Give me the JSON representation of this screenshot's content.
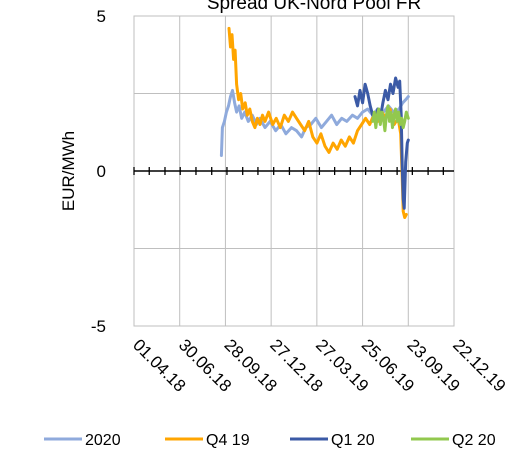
{
  "chart_data": {
    "type": "line",
    "title": "Spread UK-Nord Pool FR",
    "ylabel": "EUR/MWh",
    "xlabel": "",
    "ylim": [
      -5,
      5
    ],
    "y_ticks": [
      "5",
      "0",
      "-5"
    ],
    "x_tick_labels": [
      "01.04.18",
      "30.06.18",
      "28.09.18",
      "27.12.18",
      "27.03.19",
      "25.06.19",
      "23.09.19",
      "22.12.19"
    ],
    "xlim": [
      "2018-04-01",
      "2019-12-22"
    ],
    "grid": true,
    "legend_position": "bottom",
    "series": [
      {
        "name": "2020",
        "color": "#8FAADC",
        "points": [
          [
            "2018-09-20",
            0.5
          ],
          [
            "2018-09-22",
            1.4
          ],
          [
            "2018-09-26",
            1.6
          ],
          [
            "2018-09-30",
            1.9
          ],
          [
            "2018-10-04",
            2.1
          ],
          [
            "2018-10-08",
            2.4
          ],
          [
            "2018-10-12",
            2.6
          ],
          [
            "2018-10-16",
            2.2
          ],
          [
            "2018-10-20",
            1.9
          ],
          [
            "2018-10-25",
            2.1
          ],
          [
            "2018-10-30",
            1.7
          ],
          [
            "2018-11-05",
            1.9
          ],
          [
            "2018-11-12",
            1.6
          ],
          [
            "2018-11-20",
            1.8
          ],
          [
            "2018-11-28",
            1.5
          ],
          [
            "2018-12-05",
            1.7
          ],
          [
            "2018-12-15",
            1.4
          ],
          [
            "2018-12-25",
            1.6
          ],
          [
            "2019-01-05",
            1.3
          ],
          [
            "2019-01-15",
            1.5
          ],
          [
            "2019-01-25",
            1.2
          ],
          [
            "2019-02-05",
            1.4
          ],
          [
            "2019-02-15",
            1.3
          ],
          [
            "2019-02-25",
            1.1
          ],
          [
            "2019-03-05",
            1.4
          ],
          [
            "2019-03-15",
            1.5
          ],
          [
            "2019-03-25",
            1.7
          ],
          [
            "2019-04-05",
            1.4
          ],
          [
            "2019-04-15",
            1.6
          ],
          [
            "2019-04-25",
            1.8
          ],
          [
            "2019-05-05",
            1.5
          ],
          [
            "2019-05-15",
            1.7
          ],
          [
            "2019-05-25",
            1.6
          ],
          [
            "2019-06-05",
            1.8
          ],
          [
            "2019-06-15",
            1.7
          ],
          [
            "2019-06-25",
            1.9
          ],
          [
            "2019-07-05",
            2.0
          ],
          [
            "2019-07-15",
            1.8
          ],
          [
            "2019-07-25",
            2.0
          ],
          [
            "2019-08-05",
            1.9
          ],
          [
            "2019-08-15",
            2.1
          ],
          [
            "2019-08-25",
            1.9
          ],
          [
            "2019-09-05",
            2.0
          ],
          [
            "2019-09-12",
            2.2
          ],
          [
            "2019-09-18",
            2.3
          ],
          [
            "2019-09-23",
            2.4
          ]
        ]
      },
      {
        "name": "Q4 19",
        "color": "#FFA500",
        "points": [
          [
            "2018-10-05",
            4.6
          ],
          [
            "2018-10-08",
            4.0
          ],
          [
            "2018-10-11",
            4.4
          ],
          [
            "2018-10-14",
            3.6
          ],
          [
            "2018-10-17",
            3.9
          ],
          [
            "2018-10-20",
            2.8
          ],
          [
            "2018-10-24",
            2.3
          ],
          [
            "2018-10-28",
            2.5
          ],
          [
            "2018-11-01",
            2.0
          ],
          [
            "2018-11-06",
            2.2
          ],
          [
            "2018-11-10",
            1.8
          ],
          [
            "2018-11-15",
            2.0
          ],
          [
            "2018-11-20",
            1.6
          ],
          [
            "2018-11-25",
            1.4
          ],
          [
            "2018-11-30",
            1.7
          ],
          [
            "2018-12-05",
            1.5
          ],
          [
            "2018-12-10",
            1.8
          ],
          [
            "2018-12-15",
            1.6
          ],
          [
            "2018-12-22",
            1.9
          ],
          [
            "2018-12-30",
            1.5
          ],
          [
            "2019-01-06",
            1.7
          ],
          [
            "2019-01-14",
            1.4
          ],
          [
            "2019-01-22",
            1.8
          ],
          [
            "2019-01-30",
            1.6
          ],
          [
            "2019-02-07",
            1.9
          ],
          [
            "2019-02-15",
            1.7
          ],
          [
            "2019-02-23",
            1.5
          ],
          [
            "2019-03-03",
            1.3
          ],
          [
            "2019-03-11",
            1.6
          ],
          [
            "2019-03-19",
            1.1
          ],
          [
            "2019-03-27",
            0.9
          ],
          [
            "2019-04-04",
            1.2
          ],
          [
            "2019-04-12",
            0.8
          ],
          [
            "2019-04-20",
            0.6
          ],
          [
            "2019-04-28",
            0.9
          ],
          [
            "2019-05-06",
            0.7
          ],
          [
            "2019-05-14",
            1.0
          ],
          [
            "2019-05-22",
            0.8
          ],
          [
            "2019-05-30",
            1.1
          ],
          [
            "2019-06-07",
            0.9
          ],
          [
            "2019-06-15",
            1.3
          ],
          [
            "2019-06-23",
            1.5
          ],
          [
            "2019-07-01",
            1.7
          ],
          [
            "2019-07-09",
            1.5
          ],
          [
            "2019-07-17",
            1.8
          ],
          [
            "2019-07-25",
            1.6
          ],
          [
            "2019-08-02",
            1.9
          ],
          [
            "2019-08-10",
            1.7
          ],
          [
            "2019-08-18",
            2.0
          ],
          [
            "2019-08-26",
            1.5
          ],
          [
            "2019-09-03",
            1.7
          ],
          [
            "2019-09-08",
            1.2
          ],
          [
            "2019-09-11",
            -0.2
          ],
          [
            "2019-09-13",
            -1.3
          ],
          [
            "2019-09-16",
            -1.5
          ],
          [
            "2019-09-19",
            -1.4
          ]
        ]
      },
      {
        "name": "Q1 20",
        "color": "#3B5AA6",
        "points": [
          [
            "2019-06-10",
            2.4
          ],
          [
            "2019-06-15",
            2.1
          ],
          [
            "2019-06-20",
            2.6
          ],
          [
            "2019-06-25",
            2.2
          ],
          [
            "2019-06-30",
            2.8
          ],
          [
            "2019-07-05",
            2.5
          ],
          [
            "2019-07-10",
            2.1
          ],
          [
            "2019-07-15",
            1.8
          ],
          [
            "2019-07-20",
            1.6
          ],
          [
            "2019-07-25",
            2.0
          ],
          [
            "2019-07-30",
            1.7
          ],
          [
            "2019-08-04",
            2.2
          ],
          [
            "2019-08-09",
            2.6
          ],
          [
            "2019-08-14",
            2.3
          ],
          [
            "2019-08-19",
            2.8
          ],
          [
            "2019-08-24",
            2.5
          ],
          [
            "2019-08-29",
            3.0
          ],
          [
            "2019-09-03",
            2.7
          ],
          [
            "2019-09-06",
            2.9
          ],
          [
            "2019-09-09",
            1.8
          ],
          [
            "2019-09-11",
            0.2
          ],
          [
            "2019-09-13",
            -0.9
          ],
          [
            "2019-09-15",
            -1.2
          ],
          [
            "2019-09-18",
            0.3
          ],
          [
            "2019-09-21",
            0.9
          ],
          [
            "2019-09-23",
            1.0
          ]
        ]
      },
      {
        "name": "Q2 20",
        "color": "#92C84E",
        "points": [
          [
            "2019-07-15",
            1.6
          ],
          [
            "2019-07-18",
            1.9
          ],
          [
            "2019-07-21",
            1.4
          ],
          [
            "2019-07-24",
            1.8
          ],
          [
            "2019-07-27",
            2.0
          ],
          [
            "2019-07-30",
            1.5
          ],
          [
            "2019-08-02",
            1.9
          ],
          [
            "2019-08-05",
            1.7
          ],
          [
            "2019-08-08",
            1.3
          ],
          [
            "2019-08-11",
            1.8
          ],
          [
            "2019-08-14",
            2.1
          ],
          [
            "2019-08-17",
            1.6
          ],
          [
            "2019-08-20",
            1.9
          ],
          [
            "2019-08-23",
            1.4
          ],
          [
            "2019-08-26",
            1.8
          ],
          [
            "2019-08-29",
            2.0
          ],
          [
            "2019-09-01",
            1.6
          ],
          [
            "2019-09-04",
            1.9
          ],
          [
            "2019-09-07",
            1.5
          ],
          [
            "2019-09-10",
            1.7
          ],
          [
            "2019-09-13",
            1.4
          ],
          [
            "2019-09-16",
            1.6
          ],
          [
            "2019-09-19",
            1.9
          ],
          [
            "2019-09-23",
            1.7
          ]
        ]
      }
    ]
  }
}
